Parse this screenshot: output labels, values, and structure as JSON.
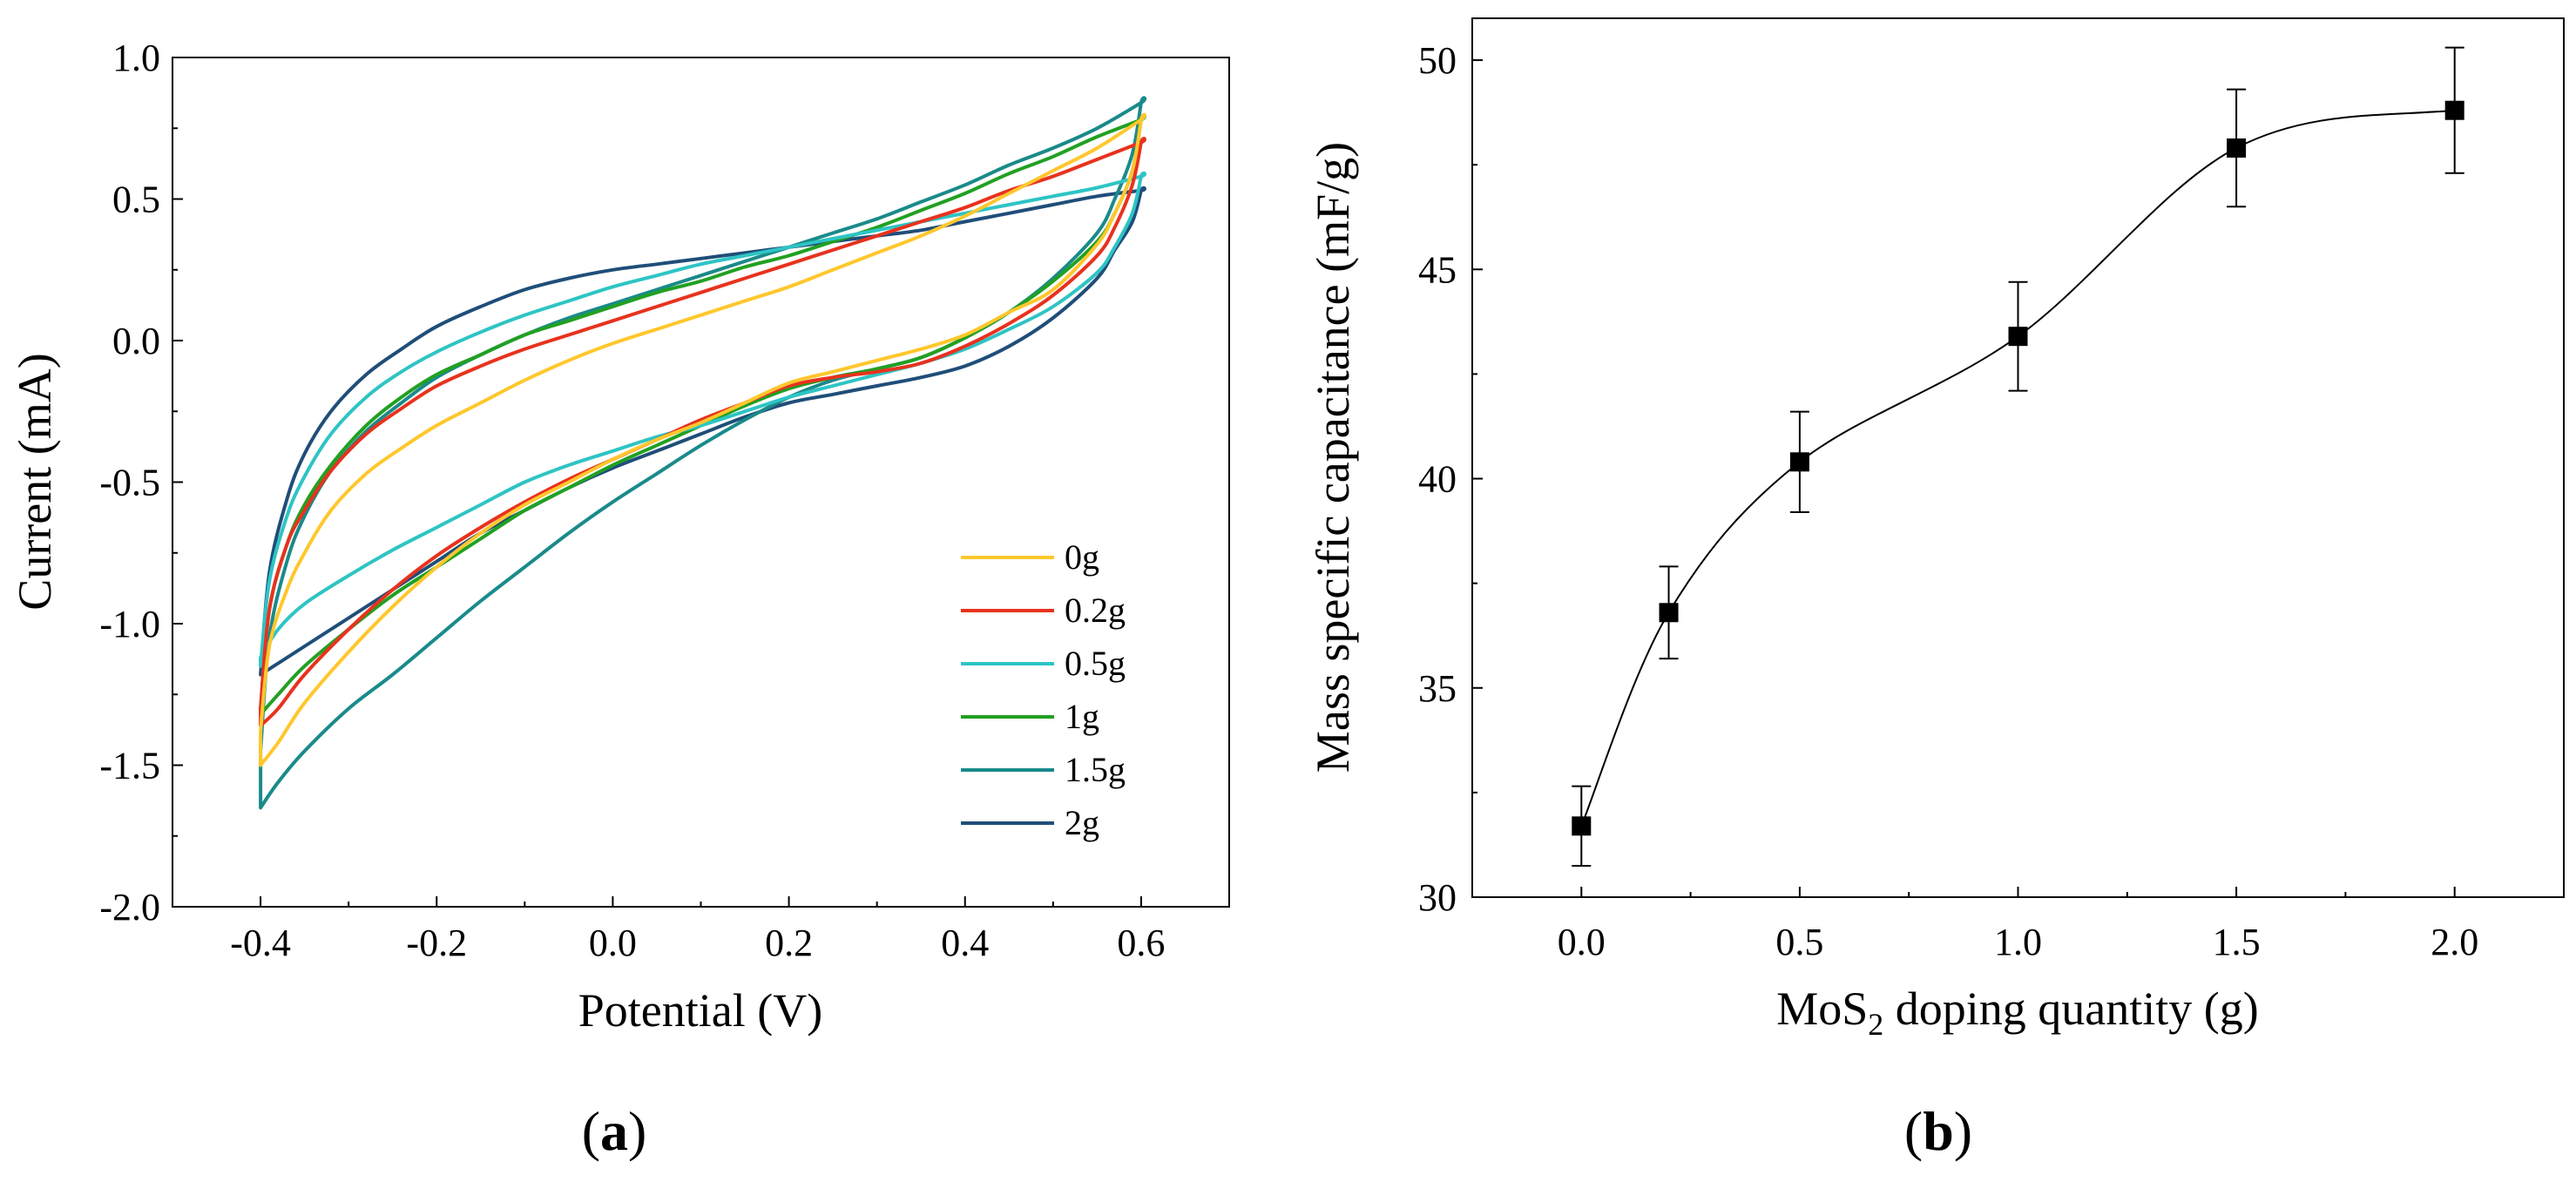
{
  "panels": [
    {
      "label_open": "(",
      "label_letter": "a",
      "label_close": ")"
    },
    {
      "label_open": "(",
      "label_letter": "b",
      "label_close": ")"
    }
  ],
  "chart_data": [
    {
      "type": "line",
      "title": "",
      "xlabel": "Potential (V)",
      "ylabel": "Current (mA)",
      "xlim": [
        -0.5,
        0.7
      ],
      "ylim": [
        -2.0,
        1.0
      ],
      "xticks": [
        -0.4,
        -0.2,
        0.0,
        0.2,
        0.4,
        0.6
      ],
      "xtick_labels": [
        "-0.4",
        "-0.2",
        "0.0",
        "0.2",
        "0.4",
        "0.6"
      ],
      "yticks": [
        1.0,
        0.5,
        0.0,
        -0.5,
        -1.0,
        -1.5,
        -2.0
      ],
      "ytick_labels": [
        "1.0",
        "0.5",
        "0.0",
        "-0.5",
        "-1.0",
        "-1.5",
        "-2.0"
      ],
      "grid": false,
      "legend_position": "bottom-right",
      "x_forward": [
        -0.4,
        -0.39,
        -0.37,
        -0.35,
        -0.32,
        -0.28,
        -0.24,
        -0.2,
        -0.15,
        -0.1,
        -0.05,
        0.0,
        0.05,
        0.1,
        0.15,
        0.2,
        0.25,
        0.3,
        0.35,
        0.4,
        0.45,
        0.5,
        0.55,
        0.6
      ],
      "x_reverse": [
        0.6,
        0.59,
        0.57,
        0.55,
        0.5,
        0.45,
        0.4,
        0.35,
        0.3,
        0.25,
        0.2,
        0.15,
        0.1,
        0.05,
        0.0,
        -0.05,
        -0.1,
        -0.15,
        -0.2,
        -0.25,
        -0.3,
        -0.35,
        -0.38,
        -0.4
      ],
      "series": [
        {
          "name": "0g",
          "color": "#FFC72C",
          "forward": [
            -1.38,
            -1.08,
            -0.88,
            -0.75,
            -0.6,
            -0.47,
            -0.38,
            -0.3,
            -0.22,
            -0.14,
            -0.07,
            -0.01,
            0.04,
            0.09,
            0.14,
            0.19,
            0.25,
            0.31,
            0.37,
            0.44,
            0.52,
            0.6,
            0.68,
            0.78
          ],
          "reverse": [
            0.78,
            0.6,
            0.45,
            0.34,
            0.18,
            0.1,
            0.02,
            -0.03,
            -0.07,
            -0.11,
            -0.15,
            -0.22,
            -0.29,
            -0.35,
            -0.42,
            -0.5,
            -0.58,
            -0.68,
            -0.8,
            -0.94,
            -1.1,
            -1.28,
            -1.42,
            -1.5
          ]
        },
        {
          "name": "0.2g",
          "color": "#E8321E",
          "forward": [
            -1.3,
            -0.95,
            -0.72,
            -0.6,
            -0.46,
            -0.33,
            -0.24,
            -0.16,
            -0.09,
            -0.03,
            0.02,
            0.07,
            0.12,
            0.17,
            0.22,
            0.27,
            0.32,
            0.37,
            0.42,
            0.47,
            0.53,
            0.58,
            0.64,
            0.7
          ],
          "reverse": [
            0.7,
            0.55,
            0.4,
            0.3,
            0.16,
            0.06,
            -0.02,
            -0.08,
            -0.11,
            -0.13,
            -0.16,
            -0.22,
            -0.28,
            -0.35,
            -0.42,
            -0.49,
            -0.57,
            -0.66,
            -0.76,
            -0.88,
            -1.02,
            -1.18,
            -1.3,
            -1.36
          ]
        },
        {
          "name": "0.5g",
          "color": "#2EC4C4",
          "forward": [
            -1.15,
            -0.85,
            -0.62,
            -0.48,
            -0.33,
            -0.2,
            -0.11,
            -0.04,
            0.03,
            0.09,
            0.14,
            0.19,
            0.23,
            0.27,
            0.3,
            0.33,
            0.36,
            0.39,
            0.42,
            0.45,
            0.48,
            0.51,
            0.54,
            0.58
          ],
          "reverse": [
            0.58,
            0.45,
            0.33,
            0.24,
            0.12,
            0.04,
            -0.03,
            -0.08,
            -0.12,
            -0.16,
            -0.2,
            -0.25,
            -0.3,
            -0.34,
            -0.39,
            -0.44,
            -0.5,
            -0.58,
            -0.66,
            -0.74,
            -0.83,
            -0.93,
            -1.02,
            -1.12
          ]
        },
        {
          "name": "1g",
          "color": "#22A022",
          "forward": [
            -1.3,
            -0.95,
            -0.72,
            -0.58,
            -0.44,
            -0.3,
            -0.2,
            -0.12,
            -0.05,
            0.02,
            0.07,
            0.12,
            0.17,
            0.21,
            0.26,
            0.3,
            0.35,
            0.4,
            0.46,
            0.52,
            0.59,
            0.65,
            0.72,
            0.78
          ],
          "reverse": [
            0.78,
            0.6,
            0.45,
            0.35,
            0.21,
            0.1,
            0.01,
            -0.06,
            -0.1,
            -0.13,
            -0.17,
            -0.23,
            -0.3,
            -0.37,
            -0.44,
            -0.52,
            -0.6,
            -0.7,
            -0.8,
            -0.9,
            -1.02,
            -1.15,
            -1.25,
            -1.32
          ]
        },
        {
          "name": "1.5g",
          "color": "#1A8A8A",
          "forward": [
            -1.45,
            -1.05,
            -0.78,
            -0.62,
            -0.46,
            -0.32,
            -0.22,
            -0.13,
            -0.05,
            0.02,
            0.08,
            0.13,
            0.18,
            0.23,
            0.28,
            0.33,
            0.38,
            0.43,
            0.49,
            0.55,
            0.62,
            0.68,
            0.75,
            0.84
          ],
          "reverse": [
            0.84,
            0.66,
            0.5,
            0.38,
            0.22,
            0.1,
            0.01,
            -0.06,
            -0.1,
            -0.14,
            -0.2,
            -0.28,
            -0.37,
            -0.47,
            -0.57,
            -0.68,
            -0.8,
            -0.92,
            -1.05,
            -1.18,
            -1.3,
            -1.45,
            -1.56,
            -1.65
          ]
        },
        {
          "name": "2g",
          "color": "#1F4E79",
          "forward": [
            -1.18,
            -0.82,
            -0.56,
            -0.4,
            -0.25,
            -0.12,
            -0.03,
            0.05,
            0.12,
            0.18,
            0.22,
            0.25,
            0.27,
            0.29,
            0.31,
            0.33,
            0.35,
            0.37,
            0.39,
            0.42,
            0.45,
            0.48,
            0.51,
            0.53
          ],
          "reverse": [
            0.53,
            0.42,
            0.32,
            0.22,
            0.08,
            -0.02,
            -0.09,
            -0.13,
            -0.16,
            -0.19,
            -0.22,
            -0.27,
            -0.33,
            -0.39,
            -0.45,
            -0.52,
            -0.6,
            -0.68,
            -0.78,
            -0.88,
            -0.98,
            -1.08,
            -1.14,
            -1.18
          ]
        }
      ]
    },
    {
      "type": "scatter",
      "title": "",
      "xlabel_parts": [
        "MoS",
        "2",
        " doping  quantity (g)"
      ],
      "ylabel": "Mass specific capacitance (mF/g)",
      "xlim": [
        -0.25,
        2.25
      ],
      "ylim": [
        30,
        51
      ],
      "xticks": [
        0.0,
        0.5,
        1.0,
        1.5,
        2.0
      ],
      "xtick_labels": [
        "0.0",
        "0.5",
        "1.0",
        "1.5",
        "2.0"
      ],
      "yticks": [
        30,
        35,
        40,
        45,
        50
      ],
      "ytick_labels": [
        "30",
        "35",
        "40",
        "45",
        "50"
      ],
      "grid": false,
      "marker": "square",
      "smooth_curve": true,
      "points": [
        {
          "x": 0.0,
          "y": 31.7,
          "err": 0.95
        },
        {
          "x": 0.2,
          "y": 36.8,
          "err": 1.1
        },
        {
          "x": 0.5,
          "y": 40.4,
          "err": 1.2
        },
        {
          "x": 1.0,
          "y": 43.4,
          "err": 1.3
        },
        {
          "x": 1.5,
          "y": 47.9,
          "err": 1.4
        },
        {
          "x": 2.0,
          "y": 48.8,
          "err": 1.5
        }
      ]
    }
  ]
}
